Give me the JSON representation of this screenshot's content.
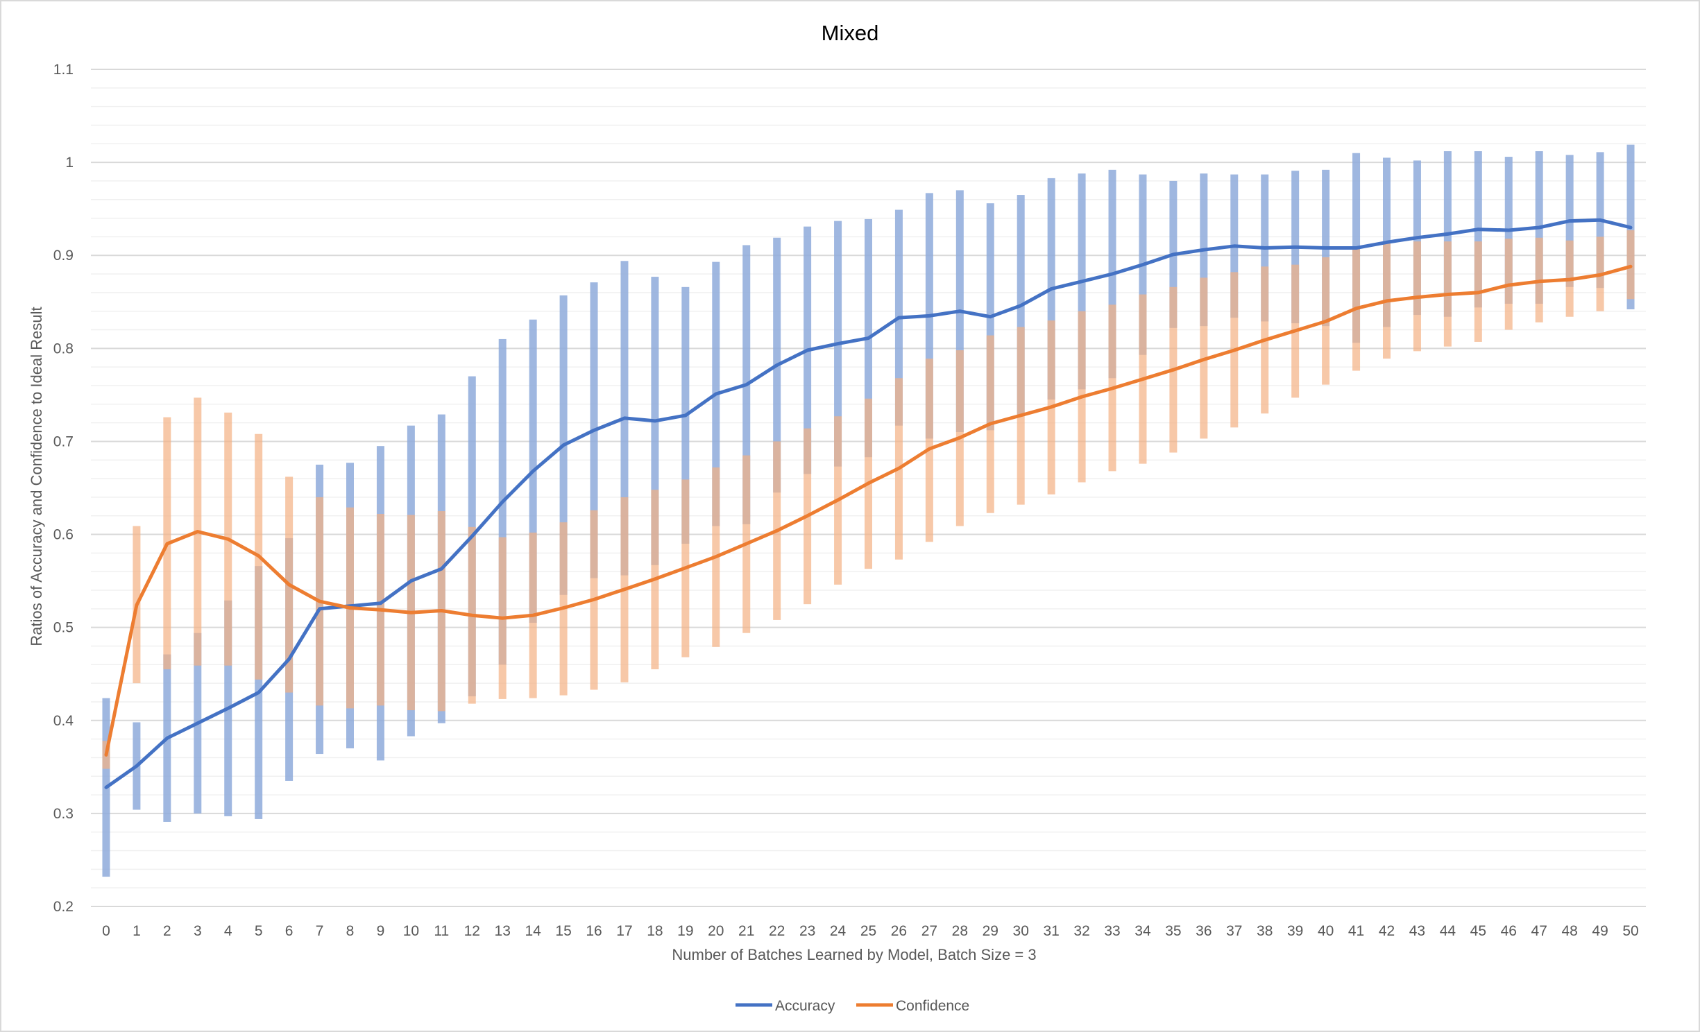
{
  "chart_data": {
    "type": "line",
    "title": "Mixed",
    "xlabel": "Number of Batches Learned by Model, Batch Size = 3",
    "ylabel": "Ratios of Accuracy and Confidence to Ideal Result",
    "ylim": [
      0.2,
      1.1
    ],
    "y_ticks": [
      "0.2",
      "0.3",
      "0.4",
      "0.5",
      "0.6",
      "0.7",
      "0.8",
      "0.9",
      "1",
      "1.1"
    ],
    "x": [
      0,
      1,
      2,
      3,
      4,
      5,
      6,
      7,
      8,
      9,
      10,
      11,
      12,
      13,
      14,
      15,
      16,
      17,
      18,
      19,
      20,
      21,
      22,
      23,
      24,
      25,
      26,
      27,
      28,
      29,
      30,
      31,
      32,
      33,
      34,
      35,
      36,
      37,
      38,
      39,
      40,
      41,
      42,
      43,
      44,
      45,
      46,
      47,
      48,
      49,
      50
    ],
    "grid": "horizontal major and minor",
    "legend_position": "bottom",
    "series": [
      {
        "name": "Accuracy",
        "color": "#4472c4",
        "band_color": "#8eaadb",
        "values": [
          0.328,
          0.351,
          0.381,
          0.397,
          0.413,
          0.43,
          0.466,
          0.52,
          0.523,
          0.526,
          0.55,
          0.563,
          0.598,
          0.635,
          0.668,
          0.696,
          0.712,
          0.725,
          0.722,
          0.728,
          0.751,
          0.761,
          0.782,
          0.798,
          0.805,
          0.811,
          0.833,
          0.835,
          0.84,
          0.834,
          0.846,
          0.864,
          0.872,
          0.88,
          0.89,
          0.901,
          0.906,
          0.91,
          0.908,
          0.909,
          0.908,
          0.908,
          0.914,
          0.919,
          0.923,
          0.928,
          0.927,
          0.93,
          0.937,
          0.938,
          0.93
        ],
        "upper": [
          0.424,
          0.398,
          0.471,
          0.494,
          0.529,
          0.566,
          0.596,
          0.675,
          0.677,
          0.695,
          0.717,
          0.729,
          0.77,
          0.81,
          0.831,
          0.857,
          0.871,
          0.894,
          0.877,
          0.866,
          0.893,
          0.911,
          0.919,
          0.931,
          0.937,
          0.939,
          0.949,
          0.967,
          0.97,
          0.956,
          0.965,
          0.983,
          0.988,
          0.992,
          0.987,
          0.98,
          0.988,
          0.987,
          0.987,
          0.991,
          0.992,
          1.01,
          1.005,
          1.002,
          1.012,
          1.012,
          1.006,
          1.012,
          1.008,
          1.011,
          1.019
        ],
        "lower": [
          0.232,
          0.304,
          0.291,
          0.3,
          0.297,
          0.294,
          0.335,
          0.364,
          0.37,
          0.357,
          0.383,
          0.397,
          0.426,
          0.46,
          0.505,
          0.535,
          0.553,
          0.556,
          0.567,
          0.59,
          0.609,
          0.611,
          0.645,
          0.665,
          0.673,
          0.683,
          0.717,
          0.703,
          0.71,
          0.712,
          0.727,
          0.745,
          0.756,
          0.768,
          0.793,
          0.822,
          0.824,
          0.833,
          0.829,
          0.827,
          0.824,
          0.806,
          0.823,
          0.836,
          0.834,
          0.844,
          0.848,
          0.848,
          0.866,
          0.865,
          0.842
        ]
      },
      {
        "name": "Confidence",
        "color": "#ed7d31",
        "band_color": "#f4b183",
        "values": [
          0.363,
          0.524,
          0.59,
          0.603,
          0.595,
          0.577,
          0.546,
          0.528,
          0.521,
          0.519,
          0.516,
          0.518,
          0.513,
          0.51,
          0.513,
          0.521,
          0.53,
          0.541,
          0.552,
          0.564,
          0.576,
          0.59,
          0.604,
          0.62,
          0.637,
          0.655,
          0.671,
          0.692,
          0.704,
          0.719,
          0.728,
          0.737,
          0.748,
          0.757,
          0.767,
          0.777,
          0.788,
          0.798,
          0.809,
          0.819,
          0.829,
          0.843,
          0.851,
          0.855,
          0.858,
          0.86,
          0.868,
          0.872,
          0.874,
          0.879,
          0.888
        ],
        "upper": [
          0.378,
          0.609,
          0.726,
          0.747,
          0.731,
          0.708,
          0.662,
          0.64,
          0.629,
          0.622,
          0.621,
          0.625,
          0.608,
          0.597,
          0.602,
          0.613,
          0.626,
          0.64,
          0.648,
          0.659,
          0.672,
          0.685,
          0.7,
          0.714,
          0.727,
          0.746,
          0.768,
          0.789,
          0.798,
          0.814,
          0.823,
          0.83,
          0.84,
          0.847,
          0.858,
          0.866,
          0.876,
          0.882,
          0.888,
          0.89,
          0.898,
          0.909,
          0.913,
          0.915,
          0.915,
          0.915,
          0.918,
          0.919,
          0.916,
          0.92,
          0.927
        ],
        "lower": [
          0.348,
          0.44,
          0.455,
          0.459,
          0.459,
          0.444,
          0.43,
          0.416,
          0.413,
          0.416,
          0.411,
          0.41,
          0.418,
          0.423,
          0.424,
          0.427,
          0.433,
          0.441,
          0.455,
          0.468,
          0.479,
          0.494,
          0.508,
          0.525,
          0.546,
          0.563,
          0.573,
          0.592,
          0.609,
          0.623,
          0.632,
          0.643,
          0.656,
          0.668,
          0.676,
          0.688,
          0.703,
          0.715,
          0.73,
          0.747,
          0.761,
          0.776,
          0.789,
          0.797,
          0.802,
          0.807,
          0.82,
          0.828,
          0.834,
          0.84,
          0.853
        ]
      }
    ]
  }
}
